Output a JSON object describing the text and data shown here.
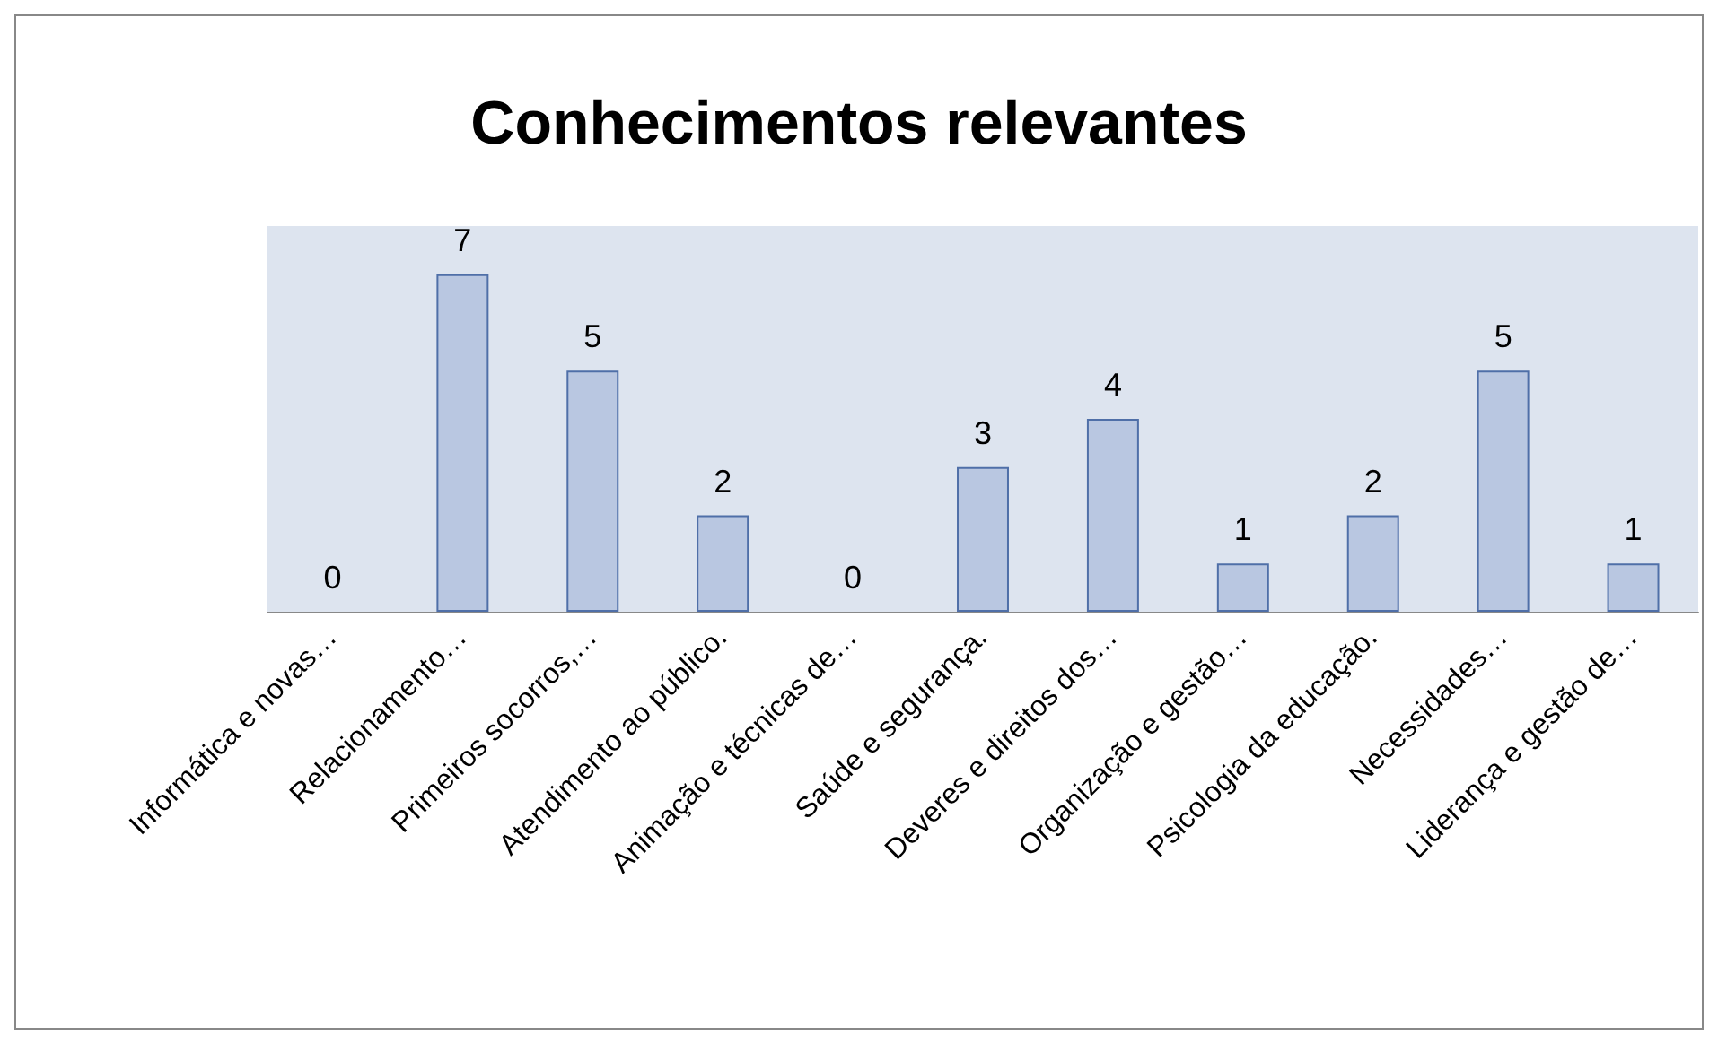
{
  "chart_data": {
    "type": "bar",
    "title": "Conhecimentos relevantes",
    "categories": [
      "Informática e novas…",
      "Relacionamento…",
      "Primeiros socorros,…",
      "Atendimento ao público.",
      "Animação e técnicas de…",
      "Saúde e segurança.",
      "Deveres e direitos dos…",
      "Organização e gestão…",
      "Psicologia da educação.",
      "Necessidades…",
      "Liderança e gestão de…"
    ],
    "values": [
      0,
      7,
      5,
      2,
      0,
      3,
      4,
      1,
      2,
      5,
      1
    ],
    "color": "#b9c7e1",
    "data_labels": true,
    "grid": false
  }
}
